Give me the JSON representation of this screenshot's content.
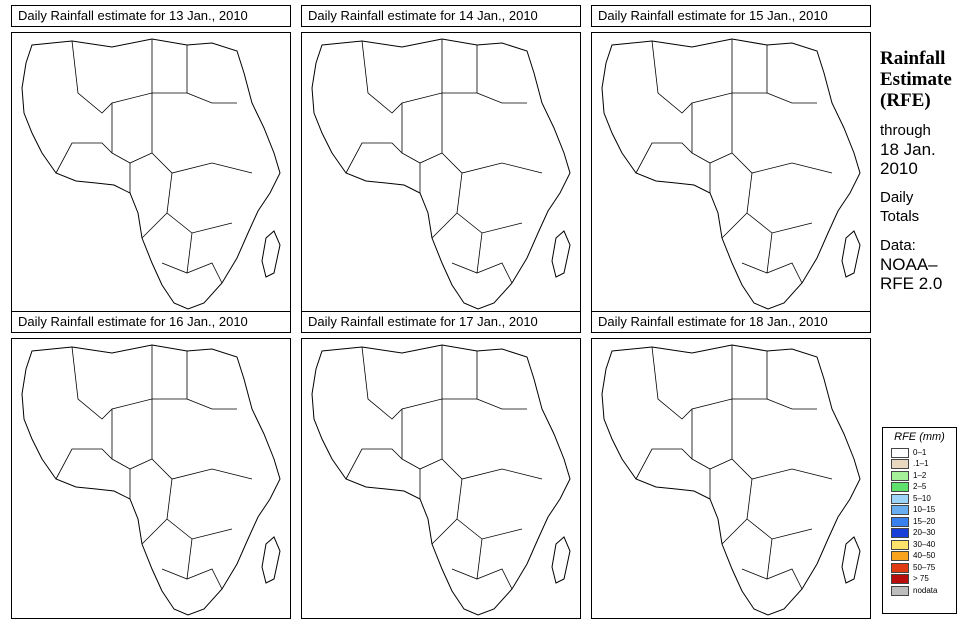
{
  "panels": [
    {
      "title": "Daily Rainfall estimate for  13 Jan., 2010"
    },
    {
      "title": "Daily Rainfall estimate for  14 Jan., 2010"
    },
    {
      "title": "Daily Rainfall estimate for  15 Jan., 2010"
    },
    {
      "title": "Daily Rainfall estimate for  16 Jan., 2010"
    },
    {
      "title": "Daily Rainfall estimate for  17 Jan., 2010"
    },
    {
      "title": "Daily Rainfall estimate for  18 Jan., 2010"
    }
  ],
  "side": {
    "title_line1": "Rainfall",
    "title_line2": "Estimate",
    "title_line3": "(RFE)",
    "through_label": "through",
    "through_date1": "18 Jan.",
    "through_date2": "2010",
    "daily_line1": "Daily",
    "daily_line2": "Totals",
    "data_line1": "Data:",
    "data_line2": "NOAA–",
    "data_line3": "RFE 2.0"
  },
  "legend": {
    "title": "RFE (mm)",
    "items": [
      {
        "label": "0–1",
        "color": "#ffffff"
      },
      {
        "label": ".1–1",
        "color": "#e8d8bf"
      },
      {
        "label": "1–2",
        "color": "#a6f09a"
      },
      {
        "label": "2–5",
        "color": "#5ee06a"
      },
      {
        "label": "5–10",
        "color": "#9ed4f7"
      },
      {
        "label": "10–15",
        "color": "#6aaef2"
      },
      {
        "label": "15–20",
        "color": "#3a80ee"
      },
      {
        "label": "20–30",
        "color": "#1a3fd8"
      },
      {
        "label": "30–40",
        "color": "#fde36b"
      },
      {
        "label": "40–50",
        "color": "#f8a31b"
      },
      {
        "label": "50–75",
        "color": "#e03a12"
      },
      {
        "label": "> 75",
        "color": "#b80d0d"
      },
      {
        "label": "nodata",
        "color": "#bdbdbd"
      }
    ]
  }
}
